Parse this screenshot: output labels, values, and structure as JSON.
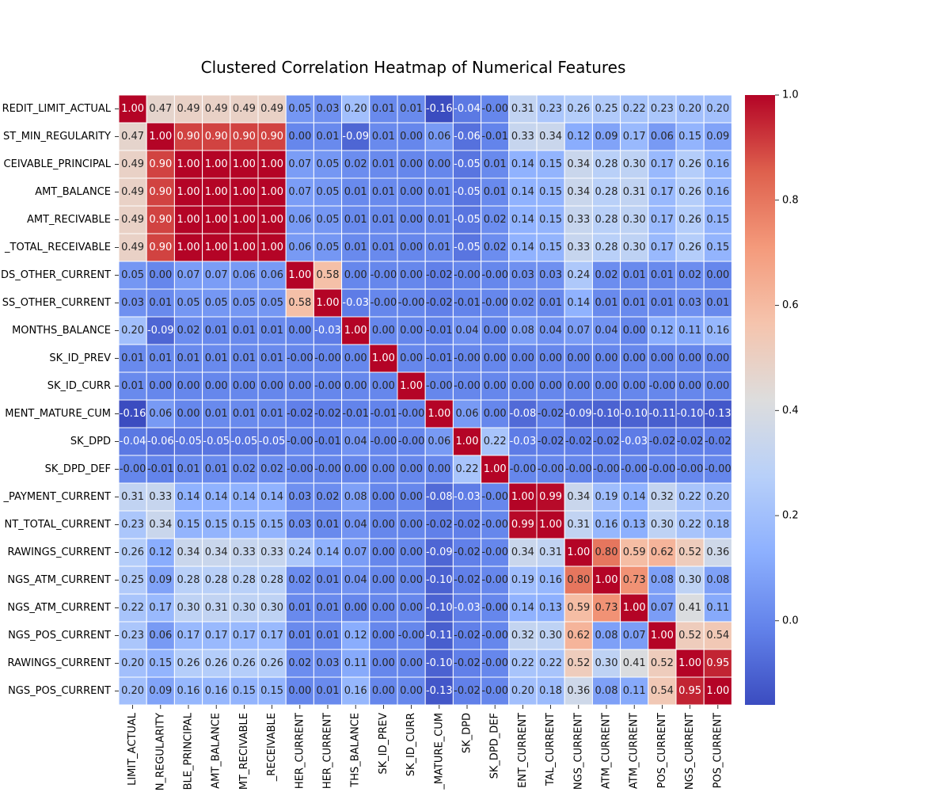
{
  "chart_data": {
    "type": "heatmap",
    "title": "Clustered Correlation Heatmap of Numerical Features",
    "row_labels": [
      "REDIT_LIMIT_ACTUAL",
      "ST_MIN_REGULARITY",
      "CEIVABLE_PRINCIPAL",
      "AMT_BALANCE",
      "AMT_RECIVABLE",
      "_TOTAL_RECEIVABLE",
      "DS_OTHER_CURRENT",
      "SS_OTHER_CURRENT",
      "MONTHS_BALANCE",
      "SK_ID_PREV",
      "SK_ID_CURR",
      "MENT_MATURE_CUM",
      "SK_DPD",
      "SK_DPD_DEF",
      "_PAYMENT_CURRENT",
      "NT_TOTAL_CURRENT",
      "RAWINGS_CURRENT",
      "NGS_ATM_CURRENT",
      "NGS_ATM_CURRENT",
      "NGS_POS_CURRENT",
      "RAWINGS_CURRENT",
      "NGS_POS_CURRENT"
    ],
    "col_labels": [
      "LIMIT_ACTUAL",
      "N_REGULARITY",
      "BLE_PRINCIPAL",
      "AMT_BALANCE",
      "MT_RECIVABLE",
      "_RECEIVABLE",
      "HER_CURRENT",
      "HER_CURRENT",
      "THS_BALANCE",
      "SK_ID_PREV",
      "SK_ID_CURR",
      "_MATURE_CUM",
      "SK_DPD",
      "SK_DPD_DEF",
      "ENT_CURRENT",
      "TAL_CURRENT",
      "NGS_CURRENT",
      "ATM_CURRENT",
      "ATM_CURRENT",
      "POS_CURRENT",
      "NGS_CURRENT",
      "POS_CURRENT"
    ],
    "values": [
      [
        "1.00",
        "0.47",
        "0.49",
        "0.49",
        "0.49",
        "0.49",
        "0.05",
        "0.03",
        "0.20",
        "0.01",
        "0.01",
        "-0.16",
        "-0.04",
        "-0.00",
        "0.31",
        "0.23",
        "0.26",
        "0.25",
        "0.22",
        "0.23",
        "0.20",
        "0.20"
      ],
      [
        "0.47",
        "1.00",
        "0.90",
        "0.90",
        "0.90",
        "0.90",
        "0.00",
        "0.01",
        "-0.09",
        "0.01",
        "0.00",
        "0.06",
        "-0.06",
        "-0.01",
        "0.33",
        "0.34",
        "0.12",
        "0.09",
        "0.17",
        "0.06",
        "0.15",
        "0.09"
      ],
      [
        "0.49",
        "0.90",
        "1.00",
        "1.00",
        "1.00",
        "1.00",
        "0.07",
        "0.05",
        "0.02",
        "0.01",
        "0.00",
        "0.00",
        "-0.05",
        "0.01",
        "0.14",
        "0.15",
        "0.34",
        "0.28",
        "0.30",
        "0.17",
        "0.26",
        "0.16"
      ],
      [
        "0.49",
        "0.90",
        "1.00",
        "1.00",
        "1.00",
        "1.00",
        "0.07",
        "0.05",
        "0.01",
        "0.01",
        "0.00",
        "0.01",
        "-0.05",
        "0.01",
        "0.14",
        "0.15",
        "0.34",
        "0.28",
        "0.31",
        "0.17",
        "0.26",
        "0.16"
      ],
      [
        "0.49",
        "0.90",
        "1.00",
        "1.00",
        "1.00",
        "1.00",
        "0.06",
        "0.05",
        "0.01",
        "0.01",
        "0.00",
        "0.01",
        "-0.05",
        "0.02",
        "0.14",
        "0.15",
        "0.33",
        "0.28",
        "0.30",
        "0.17",
        "0.26",
        "0.15"
      ],
      [
        "0.49",
        "0.90",
        "1.00",
        "1.00",
        "1.00",
        "1.00",
        "0.06",
        "0.05",
        "0.01",
        "0.01",
        "0.00",
        "0.01",
        "-0.05",
        "0.02",
        "0.14",
        "0.15",
        "0.33",
        "0.28",
        "0.30",
        "0.17",
        "0.26",
        "0.15"
      ],
      [
        "0.05",
        "0.00",
        "0.07",
        "0.07",
        "0.06",
        "0.06",
        "1.00",
        "0.58",
        "0.00",
        "-0.00",
        "0.00",
        "-0.02",
        "-0.00",
        "-0.00",
        "0.03",
        "0.03",
        "0.24",
        "0.02",
        "0.01",
        "0.01",
        "0.02",
        "0.00"
      ],
      [
        "0.03",
        "0.01",
        "0.05",
        "0.05",
        "0.05",
        "0.05",
        "0.58",
        "1.00",
        "-0.03",
        "-0.00",
        "-0.00",
        "-0.02",
        "-0.01",
        "-0.00",
        "0.02",
        "0.01",
        "0.14",
        "0.01",
        "0.01",
        "0.01",
        "0.03",
        "0.01"
      ],
      [
        "0.20",
        "-0.09",
        "0.02",
        "0.01",
        "0.01",
        "0.01",
        "0.00",
        "-0.03",
        "1.00",
        "0.00",
        "0.00",
        "-0.01",
        "0.04",
        "0.00",
        "0.08",
        "0.04",
        "0.07",
        "0.04",
        "0.00",
        "0.12",
        "0.11",
        "0.16"
      ],
      [
        "0.01",
        "0.01",
        "0.01",
        "0.01",
        "0.01",
        "0.01",
        "-0.00",
        "-0.00",
        "0.00",
        "1.00",
        "0.00",
        "-0.01",
        "-0.00",
        "0.00",
        "0.00",
        "0.00",
        "0.00",
        "0.00",
        "0.00",
        "0.00",
        "0.00",
        "0.00"
      ],
      [
        "0.01",
        "0.00",
        "0.00",
        "0.00",
        "0.00",
        "0.00",
        "0.00",
        "-0.00",
        "0.00",
        "0.00",
        "1.00",
        "-0.00",
        "-0.00",
        "0.00",
        "0.00",
        "0.00",
        "0.00",
        "0.00",
        "0.00",
        "-0.00",
        "0.00",
        "0.00"
      ],
      [
        "-0.16",
        "0.06",
        "0.00",
        "0.01",
        "0.01",
        "0.01",
        "-0.02",
        "-0.02",
        "-0.01",
        "-0.01",
        "-0.00",
        "1.00",
        "0.06",
        "0.00",
        "-0.08",
        "-0.02",
        "-0.09",
        "-0.10",
        "-0.10",
        "-0.11",
        "-0.10",
        "-0.13"
      ],
      [
        "-0.04",
        "-0.06",
        "-0.05",
        "-0.05",
        "-0.05",
        "-0.05",
        "-0.00",
        "-0.01",
        "0.04",
        "-0.00",
        "-0.00",
        "0.06",
        "1.00",
        "0.22",
        "-0.03",
        "-0.02",
        "-0.02",
        "-0.02",
        "-0.03",
        "-0.02",
        "-0.02",
        "-0.02"
      ],
      [
        "-0.00",
        "-0.01",
        "0.01",
        "0.01",
        "0.02",
        "0.02",
        "-0.00",
        "-0.00",
        "0.00",
        "0.00",
        "0.00",
        "0.00",
        "0.22",
        "1.00",
        "-0.00",
        "-0.00",
        "-0.00",
        "-0.00",
        "-0.00",
        "-0.00",
        "-0.00",
        "-0.00"
      ],
      [
        "0.31",
        "0.33",
        "0.14",
        "0.14",
        "0.14",
        "0.14",
        "0.03",
        "0.02",
        "0.08",
        "0.00",
        "0.00",
        "-0.08",
        "-0.03",
        "-0.00",
        "1.00",
        "0.99",
        "0.34",
        "0.19",
        "0.14",
        "0.32",
        "0.22",
        "0.20"
      ],
      [
        "0.23",
        "0.34",
        "0.15",
        "0.15",
        "0.15",
        "0.15",
        "0.03",
        "0.01",
        "0.04",
        "0.00",
        "0.00",
        "-0.02",
        "-0.02",
        "-0.00",
        "0.99",
        "1.00",
        "0.31",
        "0.16",
        "0.13",
        "0.30",
        "0.22",
        "0.18"
      ],
      [
        "0.26",
        "0.12",
        "0.34",
        "0.34",
        "0.33",
        "0.33",
        "0.24",
        "0.14",
        "0.07",
        "0.00",
        "0.00",
        "-0.09",
        "-0.02",
        "-0.00",
        "0.34",
        "0.31",
        "1.00",
        "0.80",
        "0.59",
        "0.62",
        "0.52",
        "0.36"
      ],
      [
        "0.25",
        "0.09",
        "0.28",
        "0.28",
        "0.28",
        "0.28",
        "0.02",
        "0.01",
        "0.04",
        "0.00",
        "0.00",
        "-0.10",
        "-0.02",
        "-0.00",
        "0.19",
        "0.16",
        "0.80",
        "1.00",
        "0.73",
        "0.08",
        "0.30",
        "0.08"
      ],
      [
        "0.22",
        "0.17",
        "0.30",
        "0.31",
        "0.30",
        "0.30",
        "0.01",
        "0.01",
        "0.00",
        "0.00",
        "0.00",
        "-0.10",
        "-0.03",
        "-0.00",
        "0.14",
        "0.13",
        "0.59",
        "0.73",
        "1.00",
        "0.07",
        "0.41",
        "0.11"
      ],
      [
        "0.23",
        "0.06",
        "0.17",
        "0.17",
        "0.17",
        "0.17",
        "0.01",
        "0.01",
        "0.12",
        "0.00",
        "-0.00",
        "-0.11",
        "-0.02",
        "-0.00",
        "0.32",
        "0.30",
        "0.62",
        "0.08",
        "0.07",
        "1.00",
        "0.52",
        "0.54"
      ],
      [
        "0.20",
        "0.15",
        "0.26",
        "0.26",
        "0.26",
        "0.26",
        "0.02",
        "0.03",
        "0.11",
        "0.00",
        "0.00",
        "-0.10",
        "-0.02",
        "-0.00",
        "0.22",
        "0.22",
        "0.52",
        "0.30",
        "0.41",
        "0.52",
        "1.00",
        "0.95"
      ],
      [
        "0.20",
        "0.09",
        "0.16",
        "0.16",
        "0.15",
        "0.15",
        "0.00",
        "0.01",
        "0.16",
        "0.00",
        "0.00",
        "-0.13",
        "-0.02",
        "-0.00",
        "0.20",
        "0.18",
        "0.36",
        "0.08",
        "0.11",
        "0.54",
        "0.95",
        "1.00"
      ]
    ],
    "colorbar": {
      "colormap": "coolwarm",
      "vmin": -0.16,
      "vmax": 1.0,
      "ticks": [
        "0.0",
        "0.2",
        "0.4",
        "0.6",
        "0.8",
        "1.0"
      ]
    },
    "grid": true
  }
}
